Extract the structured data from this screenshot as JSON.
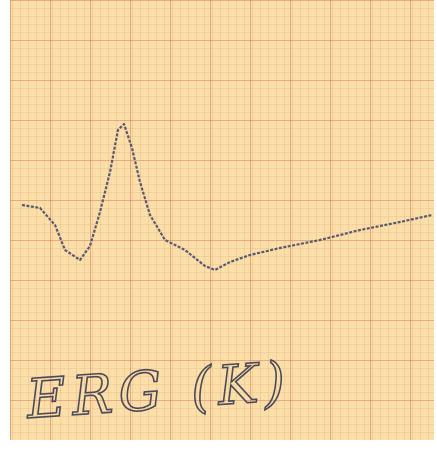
{
  "label": "ERG (K)"
}
